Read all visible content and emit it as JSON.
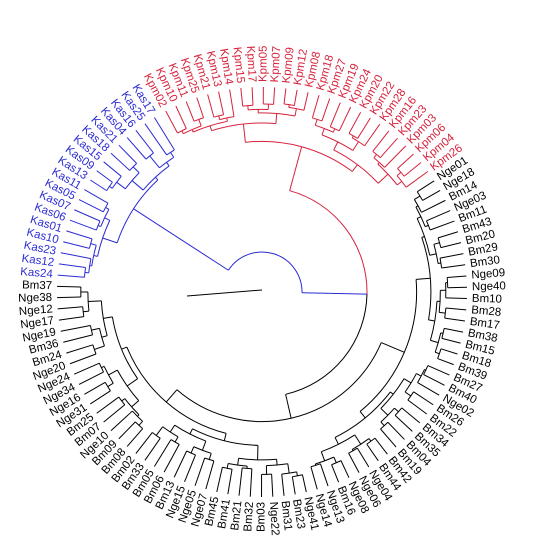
{
  "tree": {
    "colors": {
      "Kpm": "#d6223c",
      "Kas": "#2b2bd4",
      "other": "#000000",
      "backbone_blue": "#2b2bd4",
      "backbone_red": "#d6223c"
    },
    "clades": [
      {
        "group": "Kpm",
        "leaves": [
          "Kpm02",
          "Kpm10",
          "Kpm11",
          "Kpm25",
          "Kpm21",
          "Kpm13",
          "Kpm14",
          "Kpm15",
          "Kpm17",
          "Kpm05",
          "Kpm07",
          "Kpm09",
          "Kpm12",
          "Kpm08",
          "Kpm18",
          "Kpm27",
          "Kpm19",
          "Kpm24",
          "Kpm20",
          "Kpm22",
          "Kpm28",
          "Kpm16",
          "Kpm23",
          "Kpm03",
          "Kpm06",
          "Kpm04",
          "Kpm26"
        ]
      },
      {
        "group": "other",
        "leaves": [
          "Nge01",
          "Nge18",
          "Bm14",
          "Nge03",
          "Bm11",
          "Bm43",
          "Bm20",
          "Bm29",
          "Bm30",
          "Nge09",
          "Nge40",
          "Bm10",
          "Bm28",
          "Bm17",
          "Bm38",
          "Bm15",
          "Bm18",
          "Bm39",
          "Bm27",
          "Bm40",
          "Nge02",
          "Bm26",
          "Bm22",
          "Bm34",
          "Bm35",
          "Bm04",
          "Bm19",
          "Bm42",
          "Bm44",
          "Nge04",
          "Nge06",
          "Nge08",
          "Bm16",
          "Nge13",
          "Nge14",
          "Nge41",
          "Bm23",
          "Bm31",
          "Nge22",
          "Bm03",
          "Bm32",
          "Bm21",
          "Bm41",
          "Bm45",
          "Nge07",
          "Nge05",
          "Nge15",
          "Bm13",
          "Bm06",
          "Bm05",
          "Bm33",
          "Bm02",
          "Bm08",
          "Bm09",
          "Nge10",
          "Bm07",
          "Bm25",
          "Nge31",
          "Nge16",
          "Nge34",
          "Nge24",
          "Nge20",
          "Bm24",
          "Bm36",
          "Nge19",
          "Nge17",
          "Nge12",
          "Nge38",
          "Bm37"
        ]
      },
      {
        "group": "Kas",
        "leaves": [
          "Kas24",
          "Kas12",
          "Kas23",
          "Kas10",
          "Kas01",
          "Kas06",
          "Kas07",
          "Kas05",
          "Kas11",
          "Kas13",
          "Kas09",
          "Kas15",
          "Kas18",
          "Kas21",
          "Kas04",
          "Kas16",
          "Kas25",
          "Kas17"
        ]
      }
    ]
  }
}
